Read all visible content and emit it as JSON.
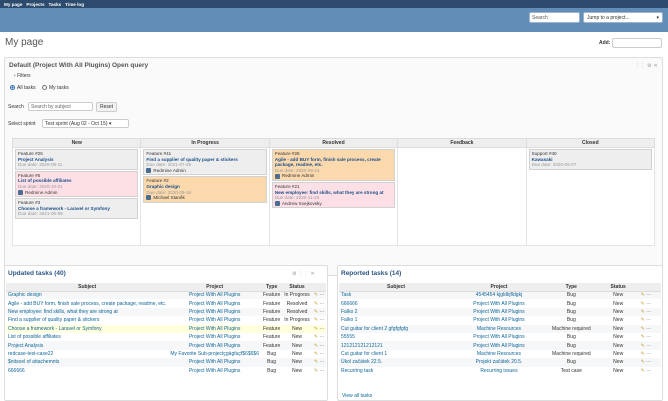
{
  "topnav": [
    "My page",
    "Projects",
    "Tasks",
    "Time log"
  ],
  "header": {
    "search_placeholder": "Search",
    "jump": "Jump to a project..."
  },
  "page": {
    "title": "My page",
    "add_label": "Add:"
  },
  "query": {
    "title": "Default (Project With All Plugins) Open query",
    "filters": "Filters",
    "all_tasks": "All tasks",
    "my_tasks": "My tasks",
    "search_label": "Search",
    "search_placeholder": "Search by subject",
    "reset": "Reset",
    "sprint_label": "Select sprint",
    "sprint_value": "Test sprint (Aug 02 - Oct 15)"
  },
  "board": {
    "columns": [
      "New",
      "In Progress",
      "Resolved",
      "Feedback",
      "Closed"
    ],
    "cards": {
      "new": [
        {
          "tag": "Feature #25",
          "title": "Project Analysis",
          "due": "Due date: 2020-09-11",
          "color": "gray"
        },
        {
          "tag": "Feature #5",
          "title": "List of possible affiliates",
          "due": "Due date: 2020-10-01",
          "assignee": "Redmine Admin",
          "color": "pink"
        },
        {
          "tag": "Feature #3",
          "title": "Choose a framework - Laravel or Symfony",
          "due": "Due date: 2021-05-09",
          "color": "gray"
        }
      ],
      "progress": [
        {
          "tag": "Feature #41",
          "title": "Find a supplier of quality paper & stickers",
          "due": "Due date: 2021-07-26",
          "assignee": "Redmine Admin",
          "color": "gray"
        },
        {
          "tag": "Feature #2",
          "title": "Graphic design",
          "due": "Due date: 2020-09-16",
          "assignee": "Michael Staněk",
          "color": "orange"
        }
      ],
      "resolved": [
        {
          "tag": "Feature #26",
          "title": "Agile - add BUY form, finish sale process, create package, readme, etc.",
          "due": "Due date: 2020-09-24",
          "assignee": "Redmine Admin",
          "color": "orange"
        },
        {
          "tag": "Feature #21",
          "title": "New employee: find skills, what they are strong at",
          "due": "Due date: 2020-11-26",
          "assignee": "Andrew Svejkovsky",
          "color": "pink"
        }
      ],
      "closed": [
        {
          "tag": "Support #40",
          "title": "Kawasaki",
          "due": "Due date: 2020-06-07",
          "color": "gray"
        }
      ]
    }
  },
  "updated": {
    "title": "Updated tasks (40)",
    "headers": [
      "Subject",
      "Project",
      "Type",
      "Status"
    ],
    "rows": [
      [
        "Graphic design",
        "Project With All Plugins",
        "Feature",
        "In Progress"
      ],
      [
        "Agile - add BUY form, finish sale process, create package, readme, etc.",
        "Project With All Plugins",
        "Feature",
        "Resolved"
      ],
      [
        "New employee: find skills, what they are strong at",
        "Project With All Plugins",
        "Feature",
        "Resolved"
      ],
      [
        "Find a supplier of quality paper & stickers",
        "Project With All Plugins",
        "Feature",
        "In Progress"
      ],
      [
        "Choose a framework - Laravel or Symfony",
        "Project With All Plugins",
        "Feature",
        "New"
      ],
      [
        "List of possible affiliates",
        "Project With All Plugins",
        "Feature",
        "New"
      ],
      [
        "Project Analysis",
        "Project With All Plugins",
        "Feature",
        "New"
      ],
      [
        "redcase-test-case22",
        "My Favorite Sub-projectçgägfuçf$6$6$6",
        "Bug",
        "New"
      ],
      [
        "$nitsoel of attachemnts",
        "Project With All Plugins",
        "Bug",
        "New"
      ],
      [
        "666666",
        "Project With All Plugins",
        "Bug",
        "New"
      ]
    ]
  },
  "reported": {
    "title": "Reported tasks (14)",
    "headers": [
      "Subject",
      "Project",
      "Type",
      "Status"
    ],
    "rows": [
      [
        "Task",
        "4545454 kjgldkjfldgkj",
        "Bug",
        "New"
      ],
      [
        "666666",
        "Project With All Plugins",
        "Bug",
        "New"
      ],
      [
        "Falko 2",
        "Project With All Plugins",
        "Bug",
        "New"
      ],
      [
        "Falko 1",
        "Project With All Plugins",
        "Bug",
        "New"
      ],
      [
        "Cut guitar for client 2 gfgfgfgfg",
        "Machine Resources",
        "Machine required",
        "New"
      ],
      [
        "55555",
        "Project With All Plugins",
        "Bug",
        "New"
      ],
      [
        "121212121212121",
        "Project With All Plugins",
        "Bug",
        "New"
      ],
      [
        "Cut guitar for client 1",
        "Machine Resources",
        "Machine required",
        "New"
      ],
      [
        "Úkol začátek 22.5.",
        "Projekt začátek 20.5.",
        "Bug",
        "New"
      ],
      [
        "Recurring task",
        "Recurring issues",
        "Test case",
        "New"
      ]
    ],
    "view_all": "View all tasks"
  }
}
